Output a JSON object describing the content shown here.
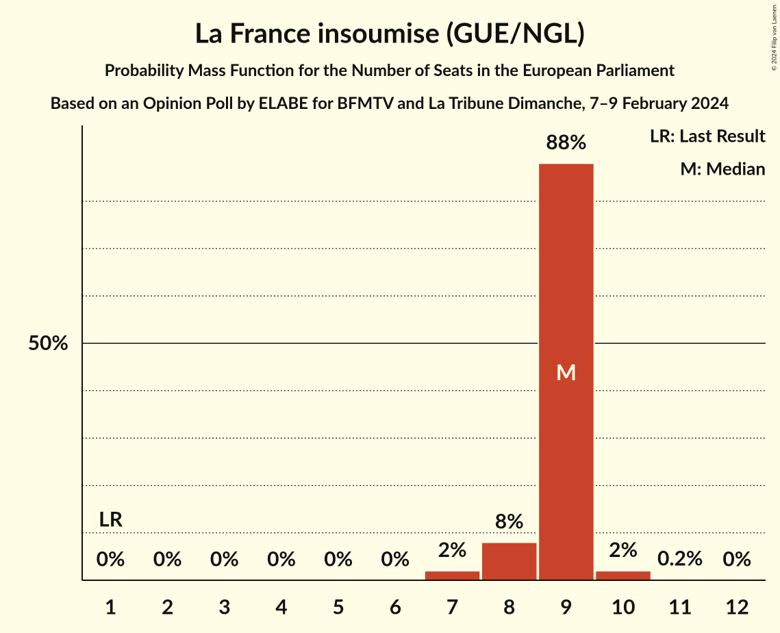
{
  "chart_data": {
    "type": "bar",
    "title": "La France insoumise (GUE/NGL)",
    "subtitle": "Probability Mass Function for the Number of Seats in the European Parliament",
    "subtitle2": "Based on an Opinion Poll by ELABE for BFMTV and La Tribune Dimanche, 7–9 February 2024",
    "copyright": "© 2024 Filip van Laenen",
    "categories": [
      "1",
      "2",
      "3",
      "4",
      "5",
      "6",
      "7",
      "8",
      "9",
      "10",
      "11",
      "12"
    ],
    "values": [
      0,
      0,
      0,
      0,
      0,
      0,
      2,
      8,
      88,
      2,
      0.2,
      0
    ],
    "value_labels": [
      "0%",
      "0%",
      "0%",
      "0%",
      "0%",
      "0%",
      "2%",
      "8%",
      "88%",
      "2%",
      "0.2%",
      "0%"
    ],
    "color": "#c9432a",
    "ylim": [
      0,
      96
    ],
    "yticks": [
      {
        "value": 50,
        "label": "50%"
      }
    ],
    "minor_gridlines": [
      10,
      20,
      30,
      40,
      60,
      70,
      80
    ],
    "last_result": {
      "category": "1",
      "label": "LR"
    },
    "median": {
      "category": "9",
      "label": "M"
    },
    "legend": [
      "LR: Last Result",
      "M: Median"
    ],
    "legend_position": "upper right"
  }
}
